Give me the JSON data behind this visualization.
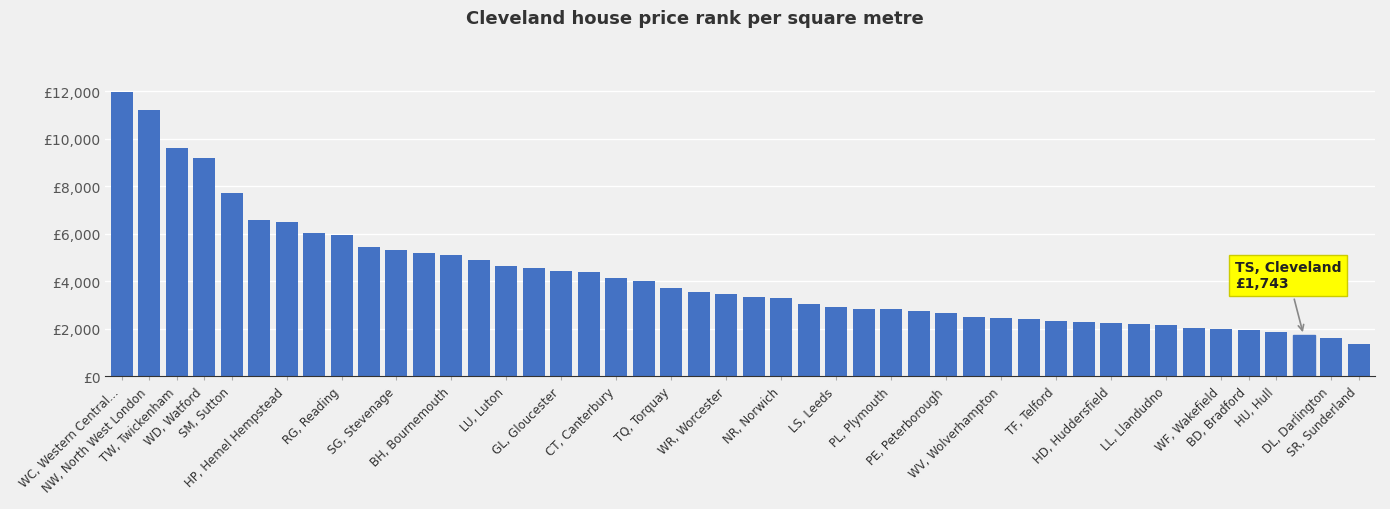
{
  "categories": [
    "WC, Western Central...",
    "NW, North West London",
    "TW, Twickenham",
    "WD, Watford",
    "SM, Sutton",
    "HP, Hemel Hempstead",
    "RG, Reading",
    "SG, Stevenage",
    "BH, Bournemouth",
    "LU, Luton",
    "GL, Gloucester",
    "CT, Canterbury",
    "TQ, Torquay",
    "WR, Worcester",
    "NR, Norwich",
    "LS, Leeds",
    "PL, Plymouth",
    "PE, Peterborough",
    "WV, Wolverhampton",
    "TF, Telford",
    "HD, Huddersfield",
    "LL, Llandudno",
    "WF, Wakefield",
    "BD, Bradford",
    "HU, Hull",
    "DL, Darlington",
    "SR, Sunderland"
  ],
  "values": [
    11950,
    11200,
    9600,
    9200,
    7700,
    6600,
    6500,
    6050,
    5950,
    5450,
    5300,
    5200,
    5100,
    4900,
    4650,
    4550,
    4450,
    4400,
    4150,
    4000,
    3700,
    3550,
    3450,
    3350,
    3300,
    3050,
    2900,
    2850,
    2850,
    2750,
    2650,
    2500,
    2450,
    2400,
    2350,
    2300,
    2250,
    2200,
    2150,
    2050,
    2000,
    1950,
    1850,
    1743,
    1600,
    1350
  ],
  "highlight_index": 43,
  "highlight_label": "TS, Cleveland\n£1,743",
  "bar_color": "#4472C4",
  "highlight_box_color": "#FFFF00",
  "background_color": "#f0f0f0",
  "title": "Cleveland house price rank per square metre",
  "ylabel": "",
  "xlabel": "",
  "ylim": [
    0,
    13000
  ],
  "yticks": [
    0,
    2000,
    4000,
    6000,
    8000,
    10000,
    12000
  ],
  "ytick_labels": [
    "£0",
    "£2,000",
    "£4,000",
    "£6,000",
    "£8,000",
    "£10,000",
    "£12,000"
  ]
}
